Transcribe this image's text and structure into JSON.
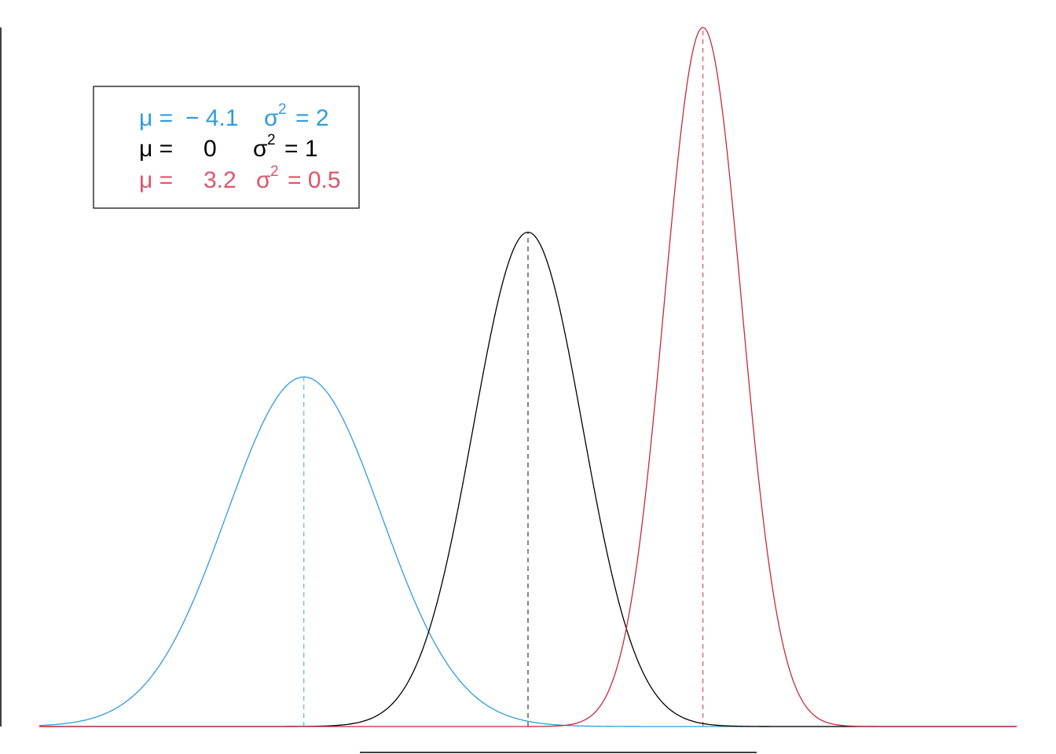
{
  "chart_data": {
    "type": "line",
    "title": "",
    "xlabel": "",
    "ylabel": "",
    "xlim": [
      -8.94,
      8.94
    ],
    "ylim": [
      0,
      0.5642
    ],
    "grid": false,
    "legend_position": "top-left",
    "series": [
      {
        "mu": -4.1,
        "variance": 2,
        "color": "#2F9BDE",
        "legend": {
          "mu_label": "μ =",
          "mu_value": "− 4.1",
          "sigma_label": "σ",
          "sup": "2",
          "var_text": "= 2"
        }
      },
      {
        "mu": 0,
        "variance": 1,
        "color": "#000000",
        "legend": {
          "mu_label": "μ =",
          "mu_value": "0",
          "sigma_label": "σ",
          "sup": "2",
          "var_text": "= 1"
        }
      },
      {
        "mu": 3.2,
        "variance": 0.5,
        "color": "#C8283C",
        "legend_color": "#DF536B",
        "legend": {
          "mu_label": "μ =",
          "mu_value": "3.2",
          "sigma_label": "σ",
          "sup": "2",
          "var_text": "= 0.5"
        }
      }
    ],
    "mean_lines": "dashed"
  }
}
